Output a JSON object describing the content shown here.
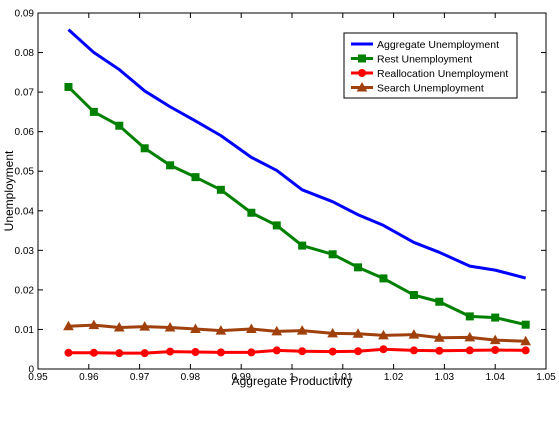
{
  "chart_data": {
    "type": "line",
    "title": "",
    "xlabel": "Aggregate Productivity",
    "ylabel": "Unemployment",
    "xlim": [
      0.95,
      1.05
    ],
    "ylim": [
      0,
      0.09
    ],
    "xticks": [
      "0.95",
      "0.96",
      "0.97",
      "0.98",
      "0.99",
      "1",
      "1.01",
      "1.02",
      "1.03",
      "1.04",
      "1.05"
    ],
    "yticks": [
      "0",
      "0.01",
      "0.02",
      "0.03",
      "0.04",
      "0.05",
      "0.06",
      "0.07",
      "0.08",
      "0.09"
    ],
    "grid": false,
    "legend_position": "top-right",
    "x": [
      0.956,
      0.961,
      0.966,
      0.971,
      0.976,
      0.981,
      0.986,
      0.992,
      0.997,
      1.002,
      1.008,
      1.013,
      1.018,
      1.024,
      1.029,
      1.035,
      1.04,
      1.046
    ],
    "series": [
      {
        "name": "Aggregate Unemployment",
        "color": "#0000ff",
        "marker": "none",
        "values": [
          0.0858,
          0.08,
          0.0757,
          0.0703,
          0.0663,
          0.0627,
          0.059,
          0.0535,
          0.0502,
          0.0453,
          0.0423,
          0.039,
          0.0363,
          0.032,
          0.0295,
          0.026,
          0.025,
          0.023
        ]
      },
      {
        "name": "Rest Unemployment",
        "color": "#008000",
        "marker": "square",
        "values": [
          0.0713,
          0.065,
          0.0615,
          0.0558,
          0.0515,
          0.0485,
          0.0453,
          0.0395,
          0.0363,
          0.0312,
          0.029,
          0.0257,
          0.0229,
          0.0187,
          0.017,
          0.0133,
          0.013,
          0.0112
        ]
      },
      {
        "name": "Reallocation Unemployment",
        "color": "#ff0000",
        "marker": "circle",
        "values": [
          0.0041,
          0.0041,
          0.004,
          0.004,
          0.0044,
          0.0043,
          0.0042,
          0.0042,
          0.0047,
          0.0045,
          0.0044,
          0.0045,
          0.005,
          0.0047,
          0.0046,
          0.0047,
          0.0048,
          0.0047
        ]
      },
      {
        "name": "Search Unemployment",
        "color": "#a0410d",
        "marker": "triangle",
        "values": [
          0.0108,
          0.0111,
          0.0105,
          0.0107,
          0.0105,
          0.0101,
          0.0097,
          0.0101,
          0.0095,
          0.0097,
          0.009,
          0.0089,
          0.0085,
          0.0087,
          0.0079,
          0.008,
          0.0073,
          0.007
        ]
      }
    ]
  }
}
